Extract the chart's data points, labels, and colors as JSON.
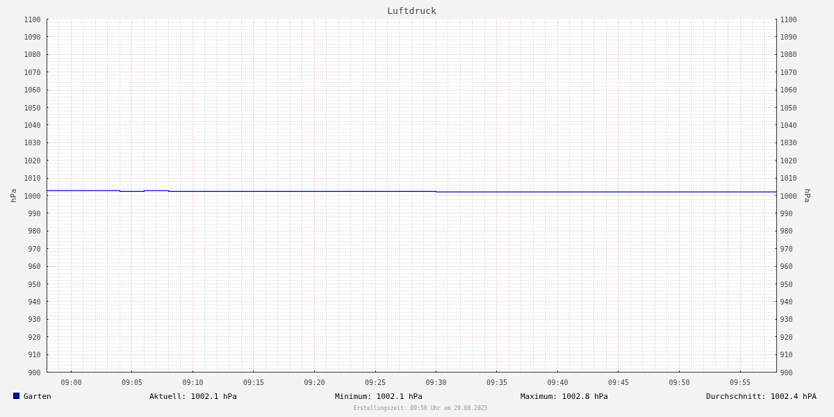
{
  "chart_data": {
    "type": "step",
    "title": "Luftdruck",
    "ylabel": "hPa",
    "y2label": "hPa",
    "x": [
      8.9667,
      9.0667,
      9.1,
      9.1333,
      9.5,
      9.9667
    ],
    "series": [
      {
        "name": "Garten",
        "color": "#0000cc",
        "values": [
          1002.8,
          1002.4,
          1002.8,
          1002.4,
          1002.1,
          1002.1
        ]
      }
    ],
    "xlim": [
      8.9667,
      9.9667
    ],
    "xticks": [
      {
        "value": 9.0,
        "label": "09:00"
      },
      {
        "value": 9.0833,
        "label": "09:05"
      },
      {
        "value": 9.1667,
        "label": "09:10"
      },
      {
        "value": 9.25,
        "label": "09:15"
      },
      {
        "value": 9.3333,
        "label": "09:20"
      },
      {
        "value": 9.4167,
        "label": "09:25"
      },
      {
        "value": 9.5,
        "label": "09:30"
      },
      {
        "value": 9.5833,
        "label": "09:35"
      },
      {
        "value": 9.6667,
        "label": "09:40"
      },
      {
        "value": 9.75,
        "label": "09:45"
      },
      {
        "value": 9.8333,
        "label": "09:50"
      },
      {
        "value": 9.9167,
        "label": "09:55"
      }
    ],
    "ylim": [
      900,
      1100
    ],
    "yticks": [
      900,
      910,
      920,
      930,
      940,
      950,
      960,
      970,
      980,
      990,
      1000,
      1010,
      1020,
      1030,
      1040,
      1050,
      1060,
      1070,
      1080,
      1090,
      1100
    ],
    "y2lim": [
      900,
      1100
    ],
    "y2ticks": [
      900,
      910,
      920,
      930,
      940,
      950,
      960,
      970,
      980,
      990,
      1000,
      1010,
      1020,
      1030,
      1040,
      1050,
      1060,
      1070,
      1080,
      1090,
      1100
    ],
    "grid": true,
    "legend": "bottom left",
    "line_style": "solid",
    "annotations": [
      "Aktuell: 1002.1 hPa",
      "Minimum: 1002.1 hPa",
      "Maximum: 1002.8 hPa",
      "Durchschnitt: 1002.4 hPA",
      "Erstellungszeit: 09:58 Uhr am 29.08.2025"
    ]
  }
}
